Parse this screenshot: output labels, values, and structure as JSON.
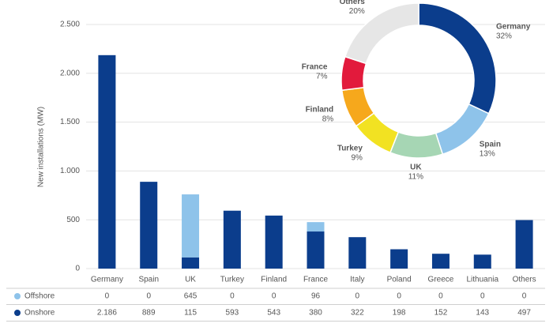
{
  "chart_data": [
    {
      "type": "bar",
      "stacked": true,
      "ylabel": "New installations (MW)",
      "categories": [
        "Germany",
        "Spain",
        "UK",
        "Turkey",
        "Finland",
        "France",
        "Italy",
        "Poland",
        "Greece",
        "Lithuania",
        "Others"
      ],
      "series": [
        {
          "name": "Onshore",
          "color": "#0b3d8c",
          "values": [
            2186,
            889,
            115,
            593,
            543,
            380,
            322,
            198,
            152,
            143,
            497
          ],
          "value_labels": [
            "2.186",
            "889",
            "115",
            "593",
            "543",
            "380",
            "322",
            "198",
            "152",
            "143",
            "497"
          ]
        },
        {
          "name": "Offshore",
          "color": "#8ec3ea",
          "values": [
            0,
            0,
            645,
            0,
            0,
            96,
            0,
            0,
            0,
            0,
            0
          ]
        }
      ],
      "ylim": [
        0,
        2500
      ],
      "yticks": [
        0,
        500,
        {
          "value": 1000,
          "label": "1.000"
        },
        {
          "value": 1500,
          "label": "1.500"
        },
        {
          "value": 2000,
          "label": "2.000"
        },
        {
          "value": 2500,
          "label": "2.500"
        }
      ],
      "grid": true
    },
    {
      "type": "donut",
      "categories": [
        "Germany",
        "Spain",
        "UK",
        "Turkey",
        "Finland",
        "France",
        "Others"
      ],
      "values": [
        32,
        13,
        11,
        9,
        8,
        7,
        20
      ],
      "value_labels": [
        "32%",
        "13%",
        "11%",
        "9%",
        "8%",
        "7%",
        "20%"
      ],
      "colors": [
        "#0b3d8c",
        "#8ec3ea",
        "#a6d6b4",
        "#f2e222",
        "#f6a81c",
        "#e21a3c",
        "#e6e6e6"
      ]
    }
  ]
}
